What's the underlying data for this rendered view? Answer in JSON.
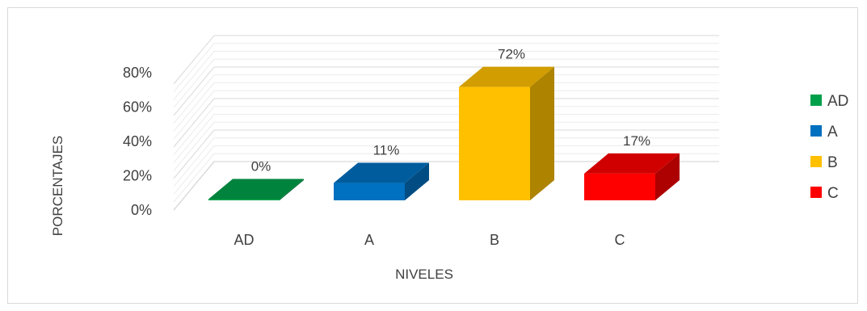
{
  "chart_data": {
    "type": "bar",
    "title": "",
    "xlabel": "NIVELES",
    "ylabel": "PORCENTAJES",
    "categories": [
      "AD",
      "A",
      "B",
      "C"
    ],
    "values": [
      0,
      11,
      72,
      17
    ],
    "data_labels": [
      "0%",
      "11%",
      "72%",
      "17%"
    ],
    "ylim": [
      0,
      80
    ],
    "yticks": [
      0,
      20,
      40,
      60,
      80
    ],
    "ytick_labels": [
      "0%",
      "20%",
      "40%",
      "60%",
      "80%"
    ],
    "grid": true,
    "three_d": true,
    "legend_position": "right",
    "legend": [
      {
        "label": "AD",
        "color": "#00a04a"
      },
      {
        "label": "A",
        "color": "#0070c0"
      },
      {
        "label": "B",
        "color": "#ffc000"
      },
      {
        "label": "C",
        "color": "#ff0000"
      }
    ],
    "colors": [
      "#00a04a",
      "#0070c0",
      "#ffc000",
      "#ff0000"
    ]
  }
}
